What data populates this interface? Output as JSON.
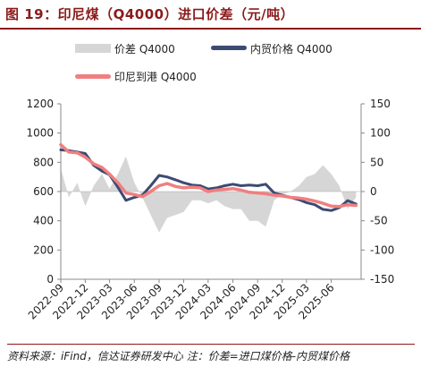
{
  "figure": {
    "title": "图 19：印尼煤（Q4000）进口价差（元/吨）",
    "source_note": "资料来源：iFind，信达证券研发中心 注：价差=进口煤价格-内贸煤价格"
  },
  "colors": {
    "diff": "#d6d6d6",
    "domestic": "#3d4a72",
    "indo": "#f07f7f",
    "title": "#8b1a1a"
  },
  "chart_data": {
    "type": "line",
    "legend": [
      "价差 Q4000",
      "内贸价格 Q4000",
      "印尼到港 Q4000"
    ],
    "legend_placement": "top",
    "x_ticks": [
      "2022-09",
      "2022-12",
      "2023-03",
      "2023-06",
      "2023-09",
      "2023-12",
      "2024-03",
      "2024-06",
      "2024-09",
      "2024-12",
      "2025-03",
      "2025-06"
    ],
    "x_range": [
      "2022-09-01",
      "2025-09-20"
    ],
    "y_left": {
      "range": [
        0,
        1200
      ],
      "ticks": [
        0,
        200,
        400,
        600,
        800,
        1000,
        1200
      ]
    },
    "y_right": {
      "range": [
        -150,
        150
      ],
      "ticks": [
        -150,
        -100,
        -50,
        0,
        50,
        100,
        150
      ]
    },
    "grid": false,
    "series": [
      {
        "name": "内贸价格 Q4000",
        "axis": "left",
        "kind": "line",
        "points": [
          [
            "2022-09-01",
            885
          ],
          [
            "2022-10-01",
            880
          ],
          [
            "2022-11-01",
            870
          ],
          [
            "2022-12-01",
            860
          ],
          [
            "2023-01-01",
            780
          ],
          [
            "2023-02-01",
            740
          ],
          [
            "2023-03-01",
            715
          ],
          [
            "2023-04-01",
            630
          ],
          [
            "2023-05-01",
            540
          ],
          [
            "2023-06-01",
            560
          ],
          [
            "2023-07-01",
            575
          ],
          [
            "2023-08-01",
            640
          ],
          [
            "2023-09-01",
            710
          ],
          [
            "2023-10-01",
            700
          ],
          [
            "2023-11-01",
            680
          ],
          [
            "2023-12-01",
            660
          ],
          [
            "2024-01-01",
            645
          ],
          [
            "2024-02-01",
            640
          ],
          [
            "2024-03-01",
            618
          ],
          [
            "2024-04-01",
            625
          ],
          [
            "2024-05-01",
            640
          ],
          [
            "2024-06-01",
            650
          ],
          [
            "2024-07-01",
            640
          ],
          [
            "2024-08-01",
            645
          ],
          [
            "2024-09-01",
            640
          ],
          [
            "2024-10-01",
            650
          ],
          [
            "2024-11-01",
            590
          ],
          [
            "2024-12-01",
            575
          ],
          [
            "2025-01-01",
            560
          ],
          [
            "2025-02-01",
            545
          ],
          [
            "2025-03-01",
            525
          ],
          [
            "2025-04-01",
            510
          ],
          [
            "2025-05-01",
            478
          ],
          [
            "2025-06-01",
            470
          ],
          [
            "2025-07-01",
            490
          ],
          [
            "2025-08-01",
            538
          ],
          [
            "2025-09-01",
            515
          ]
        ]
      },
      {
        "name": "印尼到港 Q4000",
        "axis": "left",
        "kind": "line",
        "points": [
          [
            "2022-09-01",
            920
          ],
          [
            "2022-10-01",
            870
          ],
          [
            "2022-11-01",
            865
          ],
          [
            "2022-12-01",
            835
          ],
          [
            "2023-01-01",
            790
          ],
          [
            "2023-02-01",
            765
          ],
          [
            "2023-03-01",
            720
          ],
          [
            "2023-04-01",
            660
          ],
          [
            "2023-05-01",
            590
          ],
          [
            "2023-06-01",
            580
          ],
          [
            "2023-07-01",
            565
          ],
          [
            "2023-08-01",
            600
          ],
          [
            "2023-09-01",
            640
          ],
          [
            "2023-10-01",
            655
          ],
          [
            "2023-11-01",
            635
          ],
          [
            "2023-12-01",
            625
          ],
          [
            "2024-01-01",
            630
          ],
          [
            "2024-02-01",
            625
          ],
          [
            "2024-03-01",
            600
          ],
          [
            "2024-04-01",
            610
          ],
          [
            "2024-05-01",
            615
          ],
          [
            "2024-06-01",
            620
          ],
          [
            "2024-07-01",
            610
          ],
          [
            "2024-08-01",
            595
          ],
          [
            "2024-09-01",
            590
          ],
          [
            "2024-10-01",
            585
          ],
          [
            "2024-11-01",
            575
          ],
          [
            "2024-12-01",
            570
          ],
          [
            "2025-01-01",
            560
          ],
          [
            "2025-02-01",
            555
          ],
          [
            "2025-03-01",
            548
          ],
          [
            "2025-04-01",
            535
          ],
          [
            "2025-05-01",
            520
          ],
          [
            "2025-06-01",
            500
          ],
          [
            "2025-07-01",
            498
          ],
          [
            "2025-08-01",
            510
          ],
          [
            "2025-09-01",
            505
          ]
        ]
      },
      {
        "name": "价差 Q4000",
        "axis": "right",
        "kind": "area",
        "points": [
          [
            "2022-09-01",
            40
          ],
          [
            "2022-10-01",
            -10
          ],
          [
            "2022-11-01",
            15
          ],
          [
            "2022-12-01",
            -25
          ],
          [
            "2023-01-01",
            10
          ],
          [
            "2023-02-01",
            30
          ],
          [
            "2023-03-01",
            5
          ],
          [
            "2023-04-01",
            30
          ],
          [
            "2023-05-01",
            60
          ],
          [
            "2023-06-01",
            15
          ],
          [
            "2023-07-01",
            -10
          ],
          [
            "2023-08-01",
            -40
          ],
          [
            "2023-09-01",
            -70
          ],
          [
            "2023-10-01",
            -45
          ],
          [
            "2023-11-01",
            -40
          ],
          [
            "2023-12-01",
            -35
          ],
          [
            "2024-01-01",
            -15
          ],
          [
            "2024-02-01",
            -15
          ],
          [
            "2024-03-01",
            -20
          ],
          [
            "2024-04-01",
            -15
          ],
          [
            "2024-05-01",
            -25
          ],
          [
            "2024-06-01",
            -30
          ],
          [
            "2024-07-01",
            -30
          ],
          [
            "2024-08-01",
            -50
          ],
          [
            "2024-09-01",
            -50
          ],
          [
            "2024-10-01",
            -60
          ],
          [
            "2024-11-01",
            -15
          ],
          [
            "2024-12-01",
            -5
          ],
          [
            "2025-01-01",
            0
          ],
          [
            "2025-02-01",
            10
          ],
          [
            "2025-03-01",
            25
          ],
          [
            "2025-04-01",
            30
          ],
          [
            "2025-05-01",
            45
          ],
          [
            "2025-06-01",
            30
          ],
          [
            "2025-07-01",
            10
          ],
          [
            "2025-08-01",
            -30
          ],
          [
            "2025-09-01",
            -10
          ]
        ]
      }
    ]
  }
}
